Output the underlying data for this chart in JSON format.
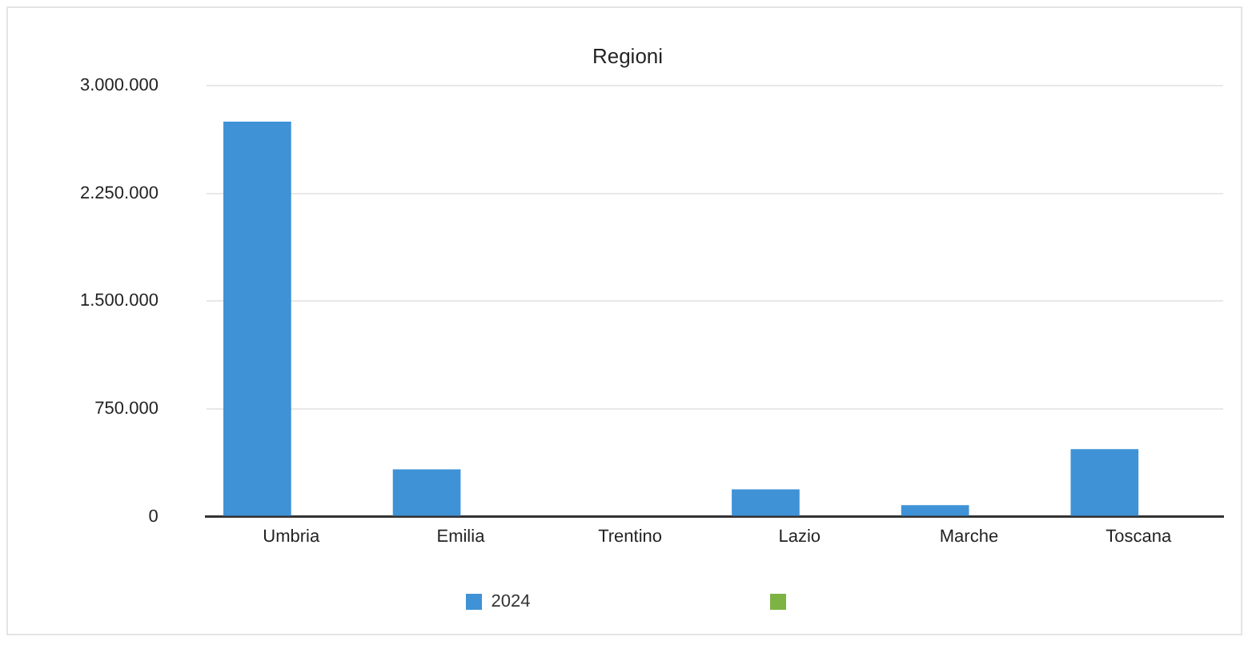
{
  "chart_data": {
    "type": "bar",
    "title": "Regioni",
    "categories": [
      "Umbria",
      "Emilia",
      "Trentino",
      "Lazio",
      "Marche",
      "Toscana"
    ],
    "series": [
      {
        "name": "2024",
        "color": "#3f92d6",
        "values": [
          2750000,
          330000,
          0,
          190000,
          80000,
          470000
        ]
      },
      {
        "color": "#7cb342",
        "values": [
          null,
          null,
          null,
          null,
          null,
          null
        ]
      }
    ],
    "ylim": [
      0,
      3000000
    ],
    "yticks": [
      0,
      {
        "value": 750000,
        "label": "750.000"
      },
      {
        "value": 1500000,
        "label": "1.500.000"
      },
      {
        "value": 2250000,
        "label": "2.250.000"
      },
      {
        "value": 3000000,
        "label": "3.000.000"
      }
    ],
    "grid": "y",
    "legend": "bottom"
  }
}
